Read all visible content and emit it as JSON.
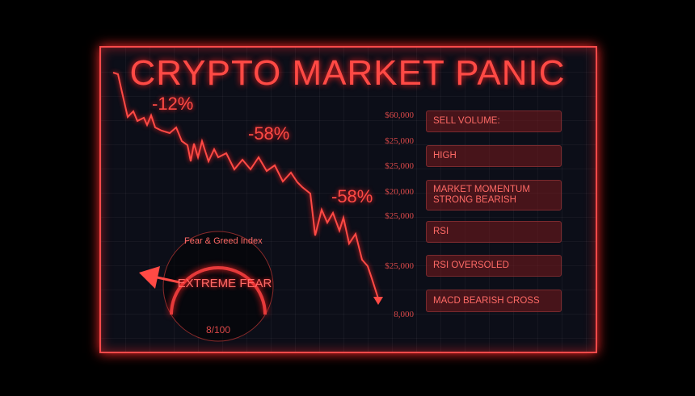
{
  "title": "CRYPTO MARKET PANIC",
  "changes": [
    "-12%",
    "-58%",
    "-58%"
  ],
  "price_axis": [
    "$60,000",
    "$25,000",
    "$25,000",
    "$20,000",
    "$25,000",
    "$25,000",
    "8,000"
  ],
  "indicators": [
    {
      "line1": "SELL VOLUME:",
      "line2": ""
    },
    {
      "line1": "HIGH",
      "line2": ""
    },
    {
      "line1": "MARKET MOMENTUM",
      "line2": "STRONG BEARISH"
    },
    {
      "line1": "RSI",
      "line2": ""
    },
    {
      "line1": "RSI OVERSOLED",
      "line2": ""
    },
    {
      "line1": "MACD BEARISH CROSS",
      "line2": ""
    }
  ],
  "gauge": {
    "title": "Fear & Greed Index",
    "label": "EXTREME FEAR",
    "value": "8/100",
    "level": 0.08
  },
  "colors": {
    "accent": "#ff4a45",
    "background": "#000000",
    "panel": "#0c0e18"
  }
}
